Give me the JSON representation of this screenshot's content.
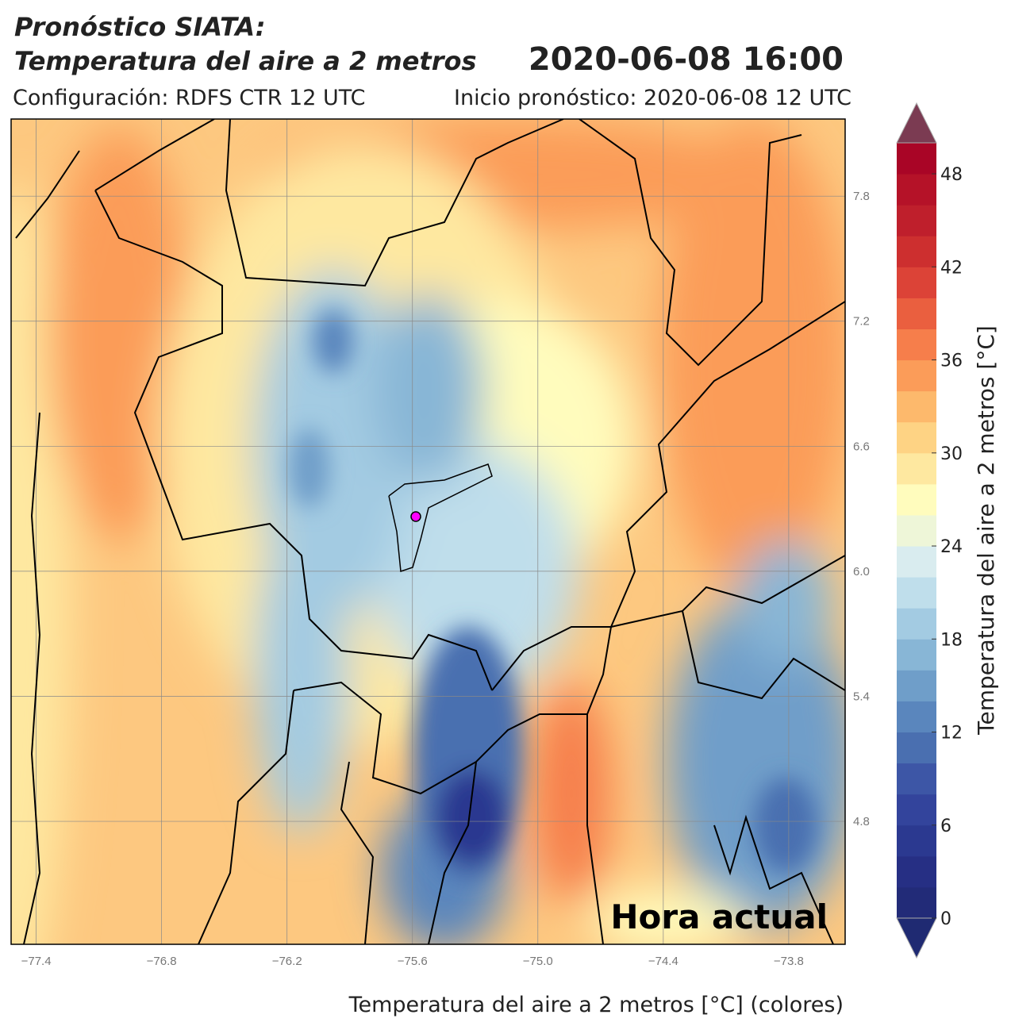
{
  "chart_data": {
    "type": "contour-map",
    "title_line1": "Pronóstico SIATA:",
    "title_line2": "Temperatura del aire a 2 metros",
    "datetime": "2020-06-08 16:00",
    "config": "Configuración: RDFS CTR 12 UTC",
    "init": "Inicio pronóstico: 2020-06-08 12 UTC",
    "xlabel": "Temperatura del aire a 2 metros [°C] (colores)",
    "annotation": "Hora actual",
    "xlim": [
      -77.52,
      -73.53
    ],
    "ylim": [
      4.21,
      8.17
    ],
    "xticks": [
      {
        "value": -77.4,
        "label": "−77.4"
      },
      {
        "value": -76.8,
        "label": "−76.8"
      },
      {
        "value": -76.2,
        "label": "−76.2"
      },
      {
        "value": -75.6,
        "label": "−75.6"
      },
      {
        "value": -75.0,
        "label": "−75.0"
      },
      {
        "value": -74.4,
        "label": "−74.4"
      },
      {
        "value": -73.8,
        "label": "−73.8"
      }
    ],
    "yticks": [
      4.8,
      5.4,
      {
        "value": 6,
        "label": "6.0"
      },
      6.6,
      7.2,
      7.8
    ],
    "grid": true,
    "colorbar": {
      "label": "Temperatura del aire a 2 metros [°C]",
      "lim": [
        0,
        50
      ],
      "ticks": [
        0,
        6,
        12,
        18,
        24,
        30,
        36,
        42,
        48
      ],
      "colors": [
        "#222b78",
        "#262f84",
        "#2b3990",
        "#33449c",
        "#3d56a6",
        "#4a6fb0",
        "#5a86bd",
        "#6f9ec9",
        "#88b6d6",
        "#a3cbe2",
        "#bfdeeb",
        "#d9ecef",
        "#eef6d8",
        "#fffcbd",
        "#fee8a0",
        "#fed384",
        "#fdb96c",
        "#fb9c59",
        "#f67e4b",
        "#ea5f3f",
        "#dc4337",
        "#cd2f2f",
        "#bf1f2c",
        "#b51228",
        "#a90526"
      ],
      "under_color": "#1f2a72",
      "over_color": "#7b3b52"
    }
  }
}
